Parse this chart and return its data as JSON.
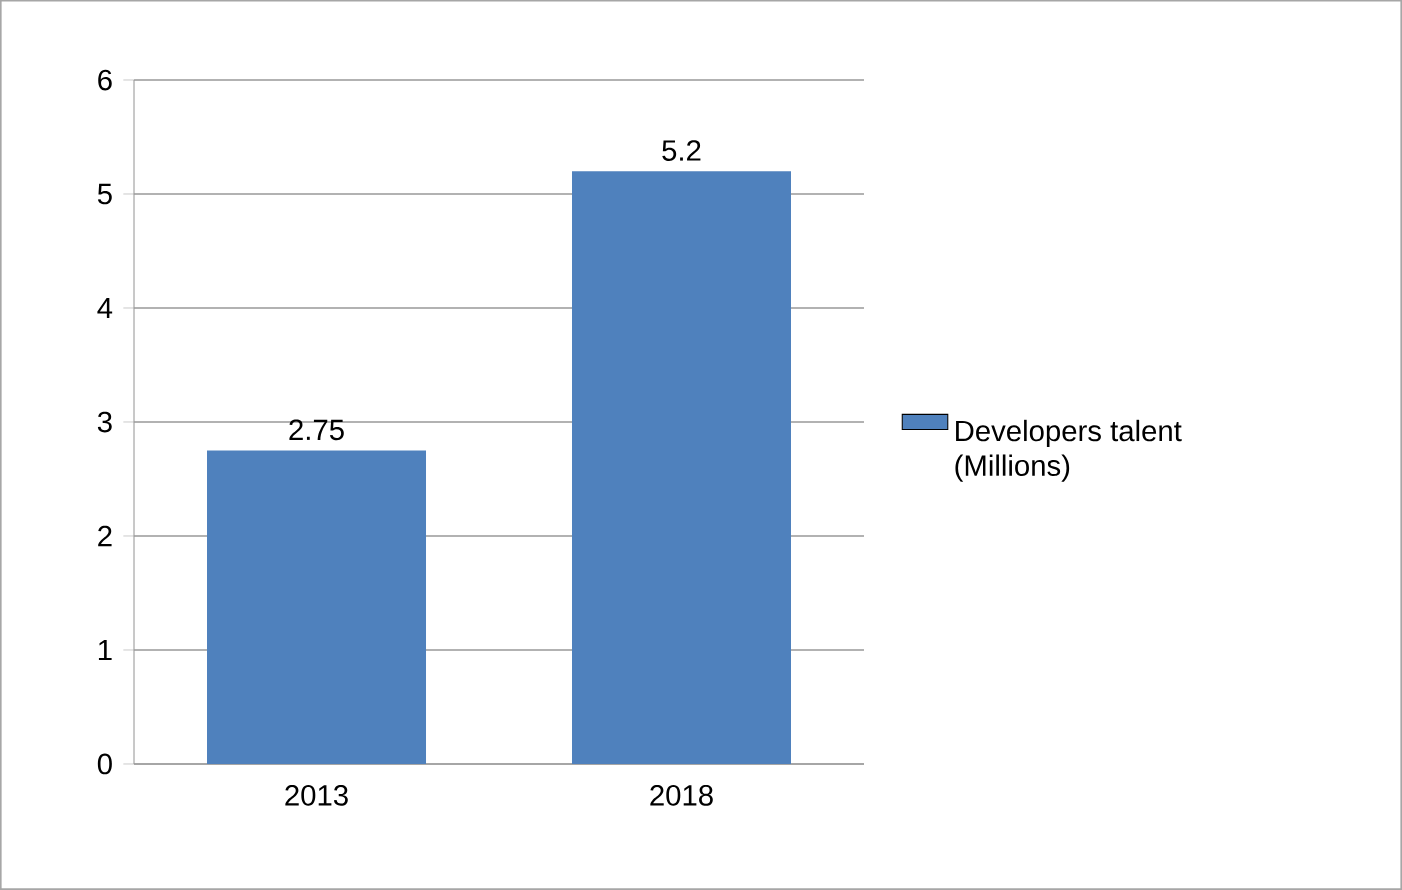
{
  "chart_data": {
    "type": "bar",
    "categories": [
      "2013",
      "2018"
    ],
    "series": [
      {
        "name": "Developers talent (Millions)",
        "color": "#4f81bd",
        "values": [
          2.75,
          5.2
        ]
      }
    ],
    "ylim": [
      0,
      6
    ],
    "yticks": [
      0,
      1,
      2,
      3,
      4,
      5,
      6
    ],
    "grid": "y",
    "legend": "right",
    "data_labels": true
  }
}
